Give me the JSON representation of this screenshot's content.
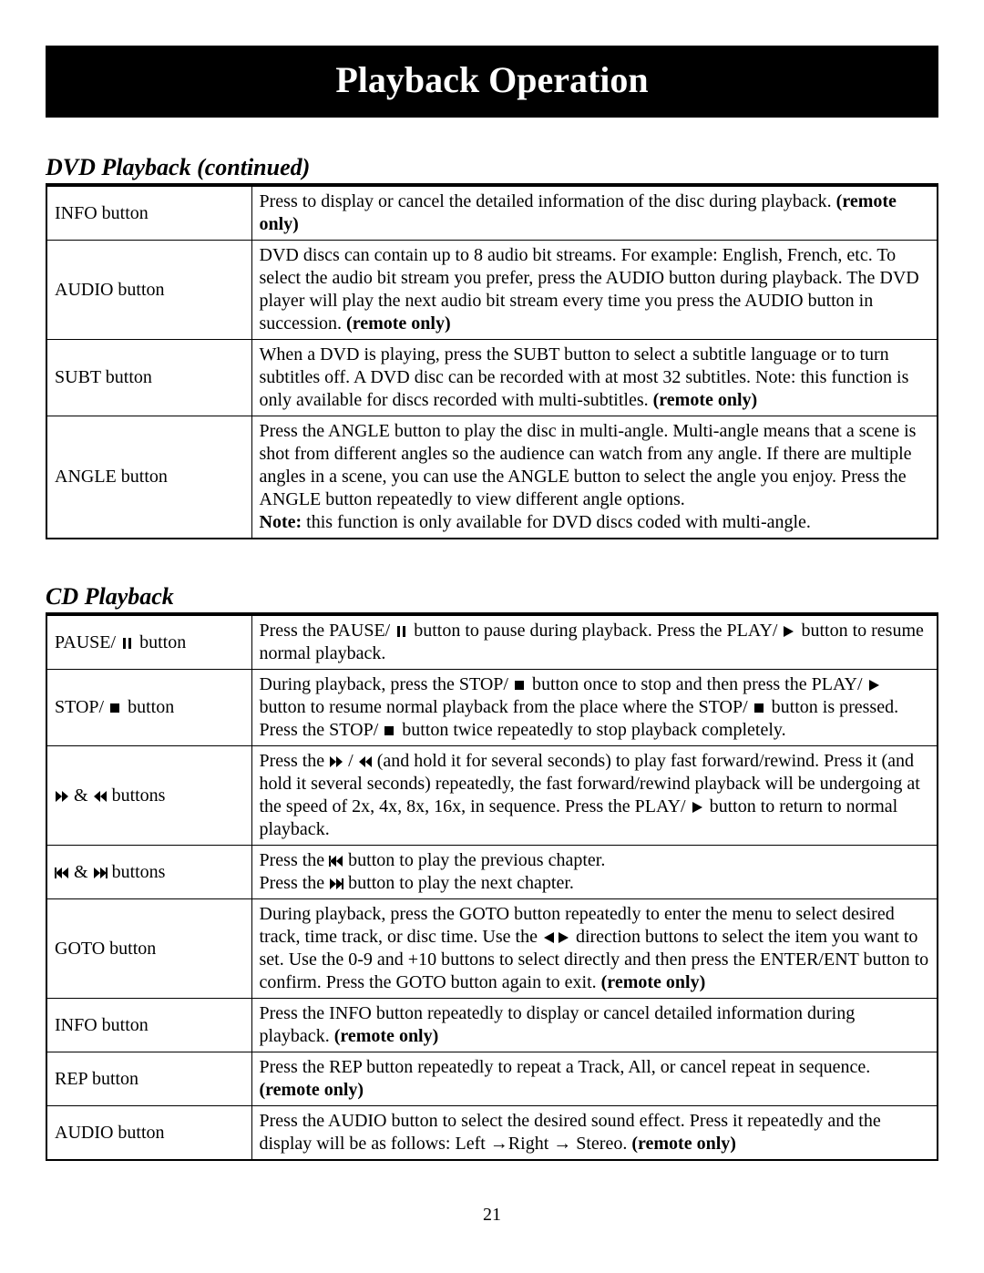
{
  "title": "Playback Operation",
  "page_number": "21",
  "sections": [
    {
      "heading": "DVD Playback (continued)",
      "rows": [
        {
          "label_segments": [
            {
              "text": "INFO button"
            }
          ],
          "desc_segments": [
            {
              "text": "Press to display or cancel the detailed information of the disc during playback.  "
            },
            {
              "text": "(remote only)",
              "bold": true
            }
          ]
        },
        {
          "label_segments": [
            {
              "text": "AUDIO button"
            }
          ],
          "desc_segments": [
            {
              "text": "DVD discs can contain up to 8 audio bit streams.  For example: English, French, etc.  To select the audio bit stream you prefer, press the AUDIO button during playback.  The DVD player will play the next audio bit stream every time you press the AUDIO button in succession.  "
            },
            {
              "text": "(remote only)",
              "bold": true
            }
          ]
        },
        {
          "label_segments": [
            {
              "text": "SUBT button"
            }
          ],
          "desc_segments": [
            {
              "text": "When a DVD is playing, press the SUBT button to select a subtitle language or to turn subtitles off.  A DVD disc can be recorded with at most 32 subtitles.  Note: this function is only available for discs recorded with multi-subtitles. "
            },
            {
              "text": "(remote only)",
              "bold": true
            }
          ]
        },
        {
          "label_segments": [
            {
              "text": "ANGLE button"
            }
          ],
          "desc_segments": [
            {
              "text": "Press the ANGLE button to play the disc in multi-angle.  Multi-angle means that a scene is shot from different angles so the audience can watch from any angle.  If there are multiple angles in a scene, you can use the ANGLE button to select the angle you enjoy.  Press the ANGLE button repeatedly to view different angle options."
            },
            {
              "br": true
            },
            {
              "text": "Note:",
              "bold": true
            },
            {
              "text": " this function is only available for DVD discs coded with multi-angle."
            }
          ]
        }
      ]
    },
    {
      "heading": "CD Playback",
      "rows": [
        {
          "label_segments": [
            {
              "text": "PAUSE/ "
            },
            {
              "icon": "pause"
            },
            {
              "text": "  button"
            }
          ],
          "desc_segments": [
            {
              "text": "Press the PAUSE/ "
            },
            {
              "icon": "pause"
            },
            {
              "text": " button to pause during playback.  Press the PLAY/ "
            },
            {
              "icon": "play"
            },
            {
              "text": " button to resume normal playback."
            }
          ]
        },
        {
          "label_segments": [
            {
              "text": "STOP/ "
            },
            {
              "icon": "stop"
            },
            {
              "text": " button"
            }
          ],
          "desc_segments": [
            {
              "text": "During playback, press the STOP/ "
            },
            {
              "icon": "stop"
            },
            {
              "text": " button once to stop and then press the PLAY/ "
            },
            {
              "icon": "play"
            },
            {
              "text": " button to resume normal playback from the place where the STOP/ "
            },
            {
              "icon": "stop"
            },
            {
              "text": " button is pressed.  Press the STOP/ "
            },
            {
              "icon": "stop"
            },
            {
              "text": " button twice repeatedly to stop playback completely."
            }
          ]
        },
        {
          "label_segments": [
            {
              "icon": "ffwd"
            },
            {
              "text": "  &  "
            },
            {
              "icon": "rwd"
            },
            {
              "text": "  buttons"
            }
          ],
          "desc_segments": [
            {
              "text": "Press the "
            },
            {
              "icon": "ffwd"
            },
            {
              "text": " / "
            },
            {
              "icon": "rwd"
            },
            {
              "text": "  (and hold it for several seconds) to play fast forward/rewind.  Press it (and hold it several seconds) repeatedly, the fast forward/rewind playback will be undergoing at the speed of 2x, 4x, 8x, 16x, in sequence.  Press the PLAY/ "
            },
            {
              "icon": "play"
            },
            {
              "text": " button to return to normal playback."
            }
          ]
        },
        {
          "label_segments": [
            {
              "icon": "prev"
            },
            {
              "text": "  &  "
            },
            {
              "icon": "next"
            },
            {
              "text": "  buttons"
            }
          ],
          "desc_segments": [
            {
              "text": "Press the "
            },
            {
              "icon": "prev"
            },
            {
              "text": "  button to play the previous chapter."
            },
            {
              "br": true
            },
            {
              "text": "Press the "
            },
            {
              "icon": "next"
            },
            {
              "text": "  button to play the next chapter."
            }
          ]
        },
        {
          "label_segments": [
            {
              "text": "GOTO button"
            }
          ],
          "desc_segments": [
            {
              "text": "During playback, press the GOTO button repeatedly to enter the menu to select desired track, time track, or disc time.  Use the "
            },
            {
              "icon": "left"
            },
            {
              "icon": "right"
            },
            {
              "text": " direction buttons to select the item you want to set.  Use the 0-9 and +10 buttons to select directly and then press the ENTER/ENT button to confirm.  Press the GOTO button again to exit. "
            },
            {
              "text": "(remote only)",
              "bold": true
            }
          ]
        },
        {
          "label_segments": [
            {
              "text": "INFO button"
            }
          ],
          "desc_segments": [
            {
              "text": "Press the INFO button repeatedly to display or cancel detailed information during playback.  "
            },
            {
              "text": "(remote only)",
              "bold": true
            }
          ]
        },
        {
          "label_segments": [
            {
              "text": "REP button"
            }
          ],
          "desc_segments": [
            {
              "text": "Press the REP button repeatedly to repeat a Track, All, or cancel repeat in sequence.  "
            },
            {
              "text": "(remote only)",
              "bold": true
            }
          ]
        },
        {
          "label_segments": [
            {
              "text": "AUDIO button"
            }
          ],
          "desc_segments": [
            {
              "text": "Press the AUDIO button to select the desired sound effect.  Press it repeatedly and the display will be as follows:  Left  →Right → Stereo.  "
            },
            {
              "text": "(remote only)",
              "bold": true
            }
          ]
        }
      ]
    }
  ]
}
